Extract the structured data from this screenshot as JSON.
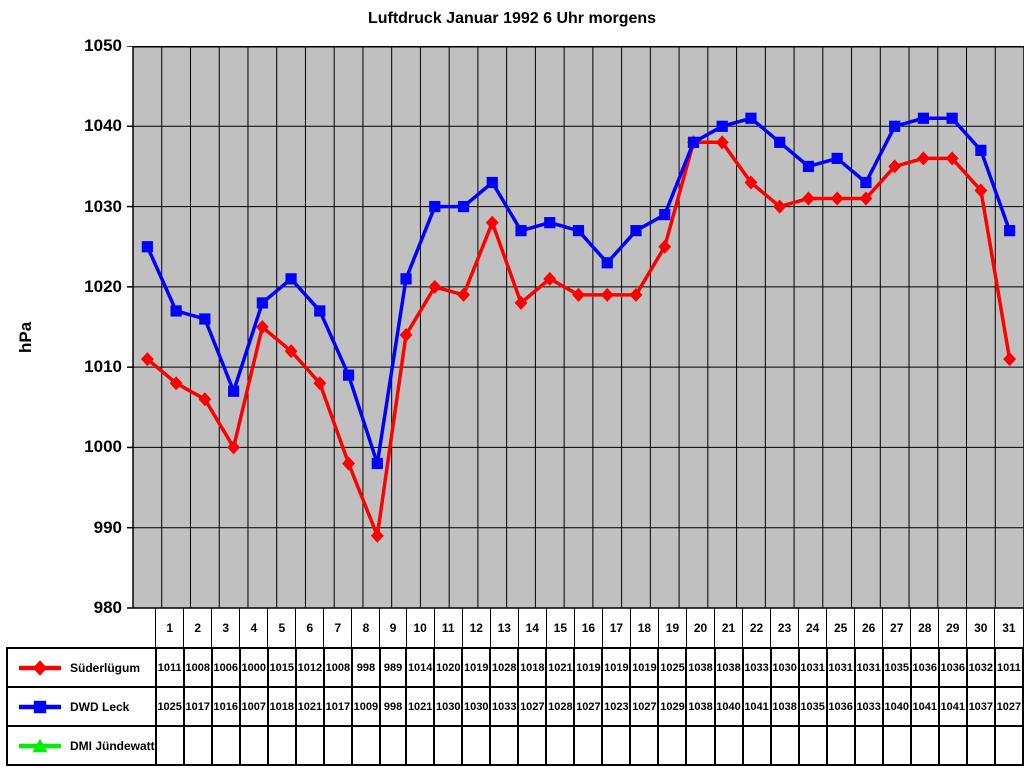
{
  "title": "Luftdruck Januar 1992 6 Uhr morgens",
  "chart_data": {
    "type": "line",
    "title": "Luftdruck Januar 1992 6 Uhr morgens",
    "xlabel": "",
    "ylabel": "hPa",
    "ylim": [
      980,
      1050
    ],
    "ytick_step": 10,
    "yticks": [
      980,
      990,
      1000,
      1010,
      1020,
      1030,
      1040,
      1050
    ],
    "grid": true,
    "plot_background": "#c0c0c0",
    "grid_color": "#000000",
    "legend_position": "bottom-table",
    "categories": [
      1,
      2,
      3,
      4,
      5,
      6,
      7,
      8,
      9,
      10,
      11,
      12,
      13,
      14,
      15,
      16,
      17,
      18,
      19,
      20,
      21,
      22,
      23,
      24,
      25,
      26,
      27,
      28,
      29,
      30,
      31
    ],
    "series": [
      {
        "name": "Süderlügum",
        "color": "#ff0000",
        "marker": "diamond",
        "values": [
          1011,
          1008,
          1006,
          1000,
          1015,
          1012,
          1008,
          998,
          989,
          1014,
          1020,
          1019,
          1028,
          1018,
          1021,
          1019,
          1019,
          1019,
          1025,
          1038,
          1038,
          1033,
          1030,
          1031,
          1031,
          1031,
          1035,
          1036,
          1036,
          1032,
          1011
        ]
      },
      {
        "name": "DWD Leck",
        "color": "#0000ff",
        "marker": "square",
        "values": [
          1025,
          1017,
          1016,
          1007,
          1018,
          1021,
          1017,
          1009,
          998,
          1021,
          1030,
          1030,
          1033,
          1027,
          1028,
          1027,
          1023,
          1027,
          1029,
          1038,
          1040,
          1041,
          1038,
          1035,
          1036,
          1033,
          1040,
          1041,
          1041,
          1037,
          1027
        ]
      },
      {
        "name": "DMI Jündewatt",
        "color": "#00ee00",
        "marker": "triangle",
        "values": []
      }
    ]
  }
}
